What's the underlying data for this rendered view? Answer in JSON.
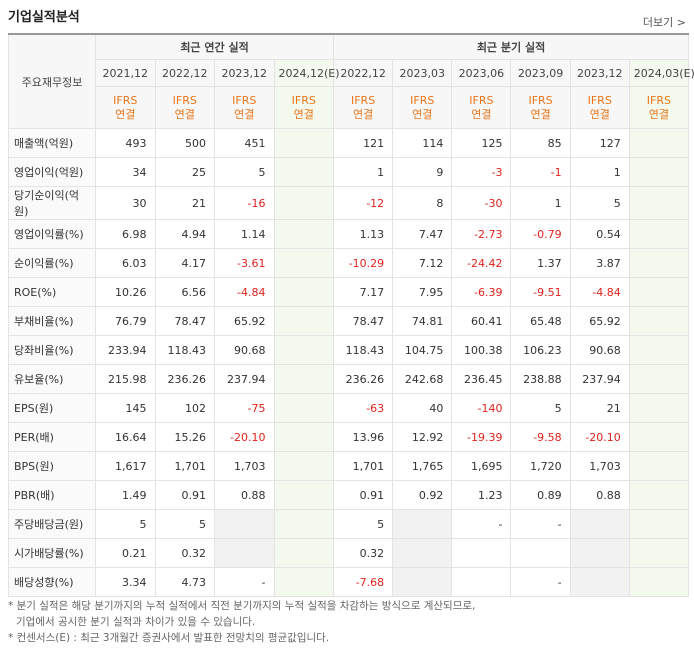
{
  "header": {
    "title": "기업실적분석",
    "more": "더보기 >"
  },
  "table": {
    "corner": "주요재무정보",
    "groups": [
      "최근 연간 실적",
      "최근 분기 실적"
    ],
    "periods": [
      "2021,12",
      "2022,12",
      "2023,12",
      "2024,12(E)",
      "2022,12",
      "2023,03",
      "2023,06",
      "2023,09",
      "2023,12",
      "2024,03(E)"
    ],
    "standard": [
      "IFRS",
      "연결"
    ],
    "rows": [
      {
        "label": "매출액(억원)",
        "cells": [
          "493",
          "500",
          "451",
          null,
          "121",
          "114",
          "125",
          "85",
          "127",
          null
        ]
      },
      {
        "label": "영업이익(억원)",
        "cells": [
          "34",
          "25",
          "5",
          null,
          "1",
          "9",
          "-3",
          "-1",
          "1",
          null
        ]
      },
      {
        "label": "당기순이익(억원)",
        "cells": [
          "30",
          "21",
          "-16",
          null,
          "-12",
          "8",
          "-30",
          "1",
          "5",
          null
        ]
      },
      {
        "label": "영업이익률(%)",
        "cells": [
          "6.98",
          "4.94",
          "1.14",
          null,
          "1.13",
          "7.47",
          "-2.73",
          "-0.79",
          "0.54",
          null
        ]
      },
      {
        "label": "순이익률(%)",
        "cells": [
          "6.03",
          "4.17",
          "-3.61",
          null,
          "-10.29",
          "7.12",
          "-24.42",
          "1.37",
          "3.87",
          null
        ]
      },
      {
        "label": "ROE(%)",
        "cells": [
          "10.26",
          "6.56",
          "-4.84",
          null,
          "7.17",
          "7.95",
          "-6.39",
          "-9.51",
          "-4.84",
          null
        ]
      },
      {
        "label": "부채비율(%)",
        "cells": [
          "76.79",
          "78.47",
          "65.92",
          null,
          "78.47",
          "74.81",
          "60.41",
          "65.48",
          "65.92",
          null
        ]
      },
      {
        "label": "당좌비율(%)",
        "cells": [
          "233.94",
          "118.43",
          "90.68",
          null,
          "118.43",
          "104.75",
          "100.38",
          "106.23",
          "90.68",
          null
        ]
      },
      {
        "label": "유보율(%)",
        "cells": [
          "215.98",
          "236.26",
          "237.94",
          null,
          "236.26",
          "242.68",
          "236.45",
          "238.88",
          "237.94",
          null
        ]
      },
      {
        "label": "EPS(원)",
        "cells": [
          "145",
          "102",
          "-75",
          null,
          "-63",
          "40",
          "-140",
          "5",
          "21",
          null
        ]
      },
      {
        "label": "PER(배)",
        "cells": [
          "16.64",
          "15.26",
          "-20.10",
          null,
          "13.96",
          "12.92",
          "-19.39",
          "-9.58",
          "-20.10",
          null
        ]
      },
      {
        "label": "BPS(원)",
        "cells": [
          "1,617",
          "1,701",
          "1,703",
          null,
          "1,701",
          "1,765",
          "1,695",
          "1,720",
          "1,703",
          null
        ]
      },
      {
        "label": "PBR(배)",
        "cells": [
          "1.49",
          "0.91",
          "0.88",
          null,
          "0.91",
          "0.92",
          "1.23",
          "0.89",
          "0.88",
          null
        ]
      },
      {
        "label": "주당배당금(원)",
        "cells": [
          "5",
          "5",
          null,
          null,
          "5",
          null,
          "-",
          "-",
          null,
          null
        ]
      },
      {
        "label": "시가배당률(%)",
        "cells": [
          "0.21",
          "0.32",
          null,
          null,
          "0.32",
          null,
          null,
          null,
          null,
          null
        ]
      },
      {
        "label": "배당성향(%)",
        "cells": [
          "3.34",
          "4.73",
          "-",
          null,
          "-7.68",
          null,
          null,
          "-",
          null,
          null
        ]
      }
    ]
  },
  "notes": [
    "* 분기 실적은 해당 분기까지의 누적 실적에서 직전 분기까지의 누적 실적을 차감하는 방식으로 계산되므로,",
    "기업에서 공시한 분기 실적과 차이가 있을 수 있습니다.",
    "* 컨센서스(E) : 최근 3개월간 증권사에서 발표한 전망치의 평균값입니다."
  ]
}
